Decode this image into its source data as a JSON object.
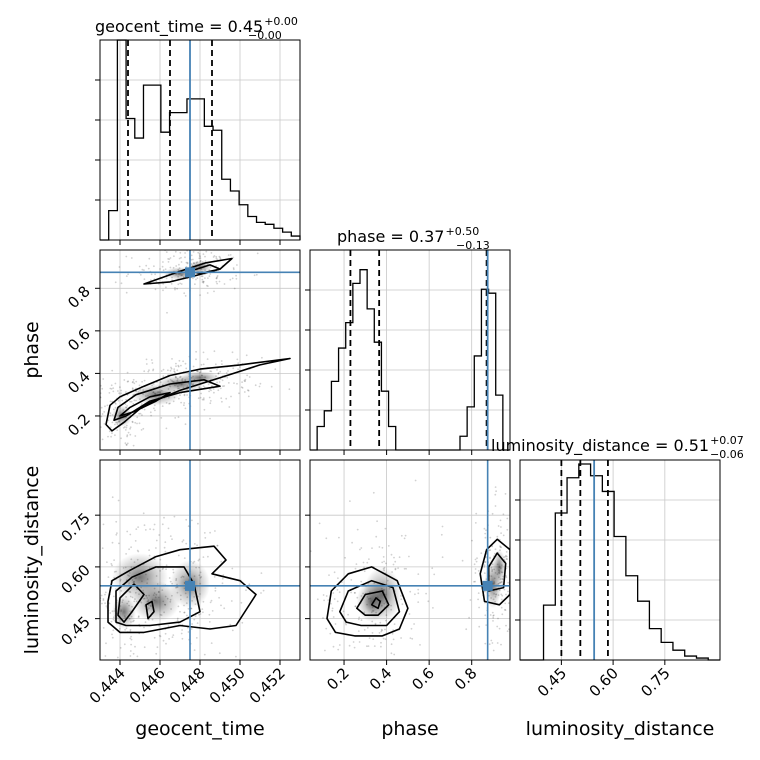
{
  "chart_data": {
    "type": "corner",
    "parameters": [
      "geocent_time",
      "phase",
      "luminosity_distance"
    ],
    "truth_color": "#4682b4",
    "grid": true,
    "titles": [
      {
        "param": "geocent_time",
        "text": "geocent_time = 0.45",
        "plus": "+0.00",
        "minus": "−0.00"
      },
      {
        "param": "phase",
        "text": "phase = 0.37",
        "plus": "+0.50",
        "minus": "−0.13"
      },
      {
        "param": "luminosity_distance",
        "text": "luminosity_distance = 0.51",
        "plus": "+0.07",
        "minus": "−0.06"
      }
    ],
    "axes": {
      "geocent_time": {
        "range": [
          0.443,
          0.453
        ],
        "ticks": [
          0.444,
          0.446,
          0.448,
          0.45,
          0.452
        ],
        "ticklabels": [
          "0.444",
          "0.446",
          "0.448",
          "0.450",
          "0.452"
        ],
        "truth": 0.4475,
        "quantiles": [
          0.4444,
          0.4465,
          0.4486
        ]
      },
      "phase": {
        "range": [
          0.04,
          0.98
        ],
        "ticks": [
          0.2,
          0.4,
          0.6,
          0.8
        ],
        "ticklabels": [
          "0.2",
          "0.4",
          "0.6",
          "0.8"
        ],
        "truth": 0.875,
        "quantiles": [
          0.23,
          0.365,
          0.87
        ]
      },
      "luminosity_distance": {
        "range": [
          0.33,
          0.91
        ],
        "ticks": [
          0.45,
          0.6,
          0.75
        ],
        "ticklabels": [
          "0.45",
          "0.60",
          "0.75"
        ],
        "truth": 0.545,
        "quantiles": [
          0.45,
          0.505,
          0.585
        ]
      }
    },
    "histograms": {
      "geocent_time": [
        0,
        0.15,
        1.02,
        0.62,
        0.52,
        0.79,
        0.79,
        0.55,
        0.65,
        0.65,
        0.72,
        0.72,
        0.58,
        0.56,
        0.31,
        0.25,
        0.18,
        0.12,
        0.09,
        0.08,
        0.06,
        0.04,
        0.02
      ],
      "phase": [
        0,
        0.12,
        0.2,
        0.35,
        0.52,
        0.65,
        0.85,
        0.92,
        0.72,
        0.55,
        0.3,
        0.12,
        0,
        0,
        0,
        0,
        0,
        0,
        0,
        0,
        0,
        0.07,
        0.22,
        0.48,
        0.82,
        0.8,
        0.28,
        0
      ],
      "luminosity_distance": [
        0,
        0,
        0.28,
        0.75,
        0.93,
        1.0,
        0.94,
        0.86,
        0.63,
        0.43,
        0.3,
        0.16,
        0.09,
        0.05,
        0.02,
        0.01,
        0
      ]
    }
  }
}
